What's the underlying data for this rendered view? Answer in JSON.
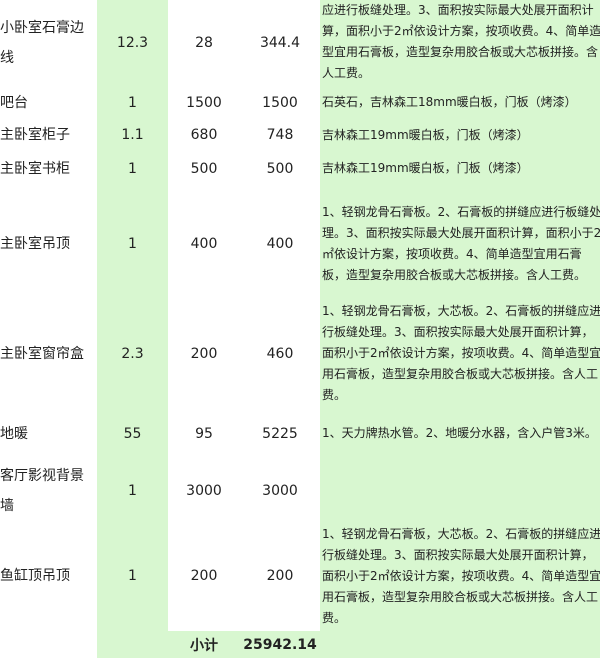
{
  "table": {
    "rows": [
      [
        "小卧室石膏边线",
        "12.3",
        "28",
        "344.4",
        "应进行板缝处理。3、面积按实际最大处展开面积计算，面积小于2㎡依设计方案，按项收费。4、简单造型宜用石膏板，造型复杂用胶合板或大芯板拼接。含人工费。"
      ],
      [
        "吧台",
        "1",
        "1500",
        "1500",
        "石英石，吉林森工18mm暖白板，门板（烤漆）"
      ],
      [
        "主卧室柜子",
        "1.1",
        "680",
        "748",
        "吉林森工19mm暖白板，门板（烤漆）"
      ],
      [
        "主卧室书柜",
        "1",
        "500",
        "500",
        "吉林森工19mm暖白板，门板（烤漆）"
      ],
      [
        "主卧室吊顶",
        "1",
        "400",
        "400",
        "1、轻钢龙骨石膏板。2、石膏板的拼缝应进行板缝处理。3、面积按实际最大处展开面积计算，面积小于2㎡依设计方案，按项收费。4、简单造型宜用石膏板，造型复杂用胶合板或大芯板拼接。含人工费。"
      ],
      [
        "主卧室窗帘盒",
        "2.3",
        "200",
        "460",
        "1、轻钢龙骨石膏板，大芯板。2、石膏板的拼缝应进行板缝处理。3、面积按实际最大处展开面积计算，面积小于2㎡依设计方案，按项收费。4、简单造型宜用石膏板，造型复杂用胶合板或大芯板拼接。含人工费。"
      ],
      [
        "地暖",
        "55",
        "95",
        "5225",
        "1、天力牌热水管。2、地暖分水器，含入户管3米。"
      ],
      [
        "客厅影视背景墙",
        "1",
        "3000",
        "3000",
        null
      ],
      [
        "鱼缸顶吊顶",
        "1",
        "200",
        "200",
        "1、轻钢龙骨石膏板，大芯板。2、石膏板的拼缝应进行板缝处理。3、面积按实际最大处展开面积计算，面积小于2㎡依设计方案，按项收费。4、简单造型宜用石膏板，造型复杂用胶合板或大芯板拼接。含人工费。"
      ]
    ],
    "subtotal_label": "小计",
    "subtotal": "25942.14"
  }
}
